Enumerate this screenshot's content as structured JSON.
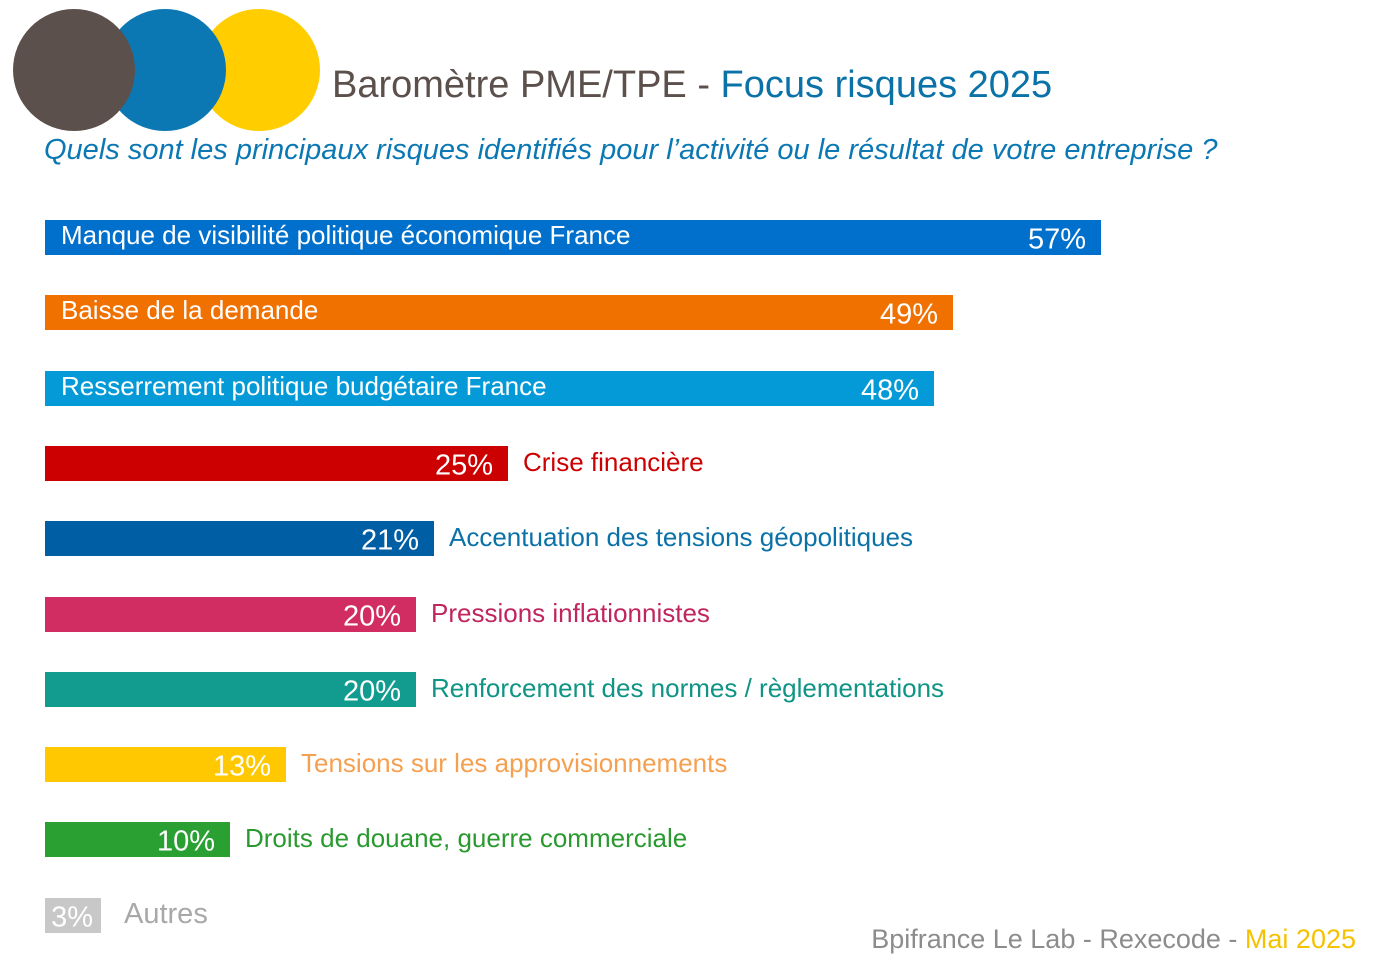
{
  "header": {
    "title_main": "Baromètre PME/TPE",
    "title_separator": "-",
    "title_accent": "Focus risques 2025",
    "question": "Quels sont les principaux risques identifiés pour l’activité ou le résultat de votre entreprise ?"
  },
  "logo": {
    "colors": [
      "#5c504c",
      "#0b78b4",
      "#ffcd00"
    ]
  },
  "chart_data": {
    "type": "bar",
    "orientation": "horizontal",
    "unit": "%",
    "categories": [
      "Manque de visibilité politique économique France",
      "Baisse de la demande",
      "Resserrement politique budgétaire France",
      "Crise financière",
      "Accentuation des tensions géopolitiques",
      "Pressions inflationnistes",
      "Renforcement des normes / règlementations",
      "Tensions sur les approvisionnements",
      "Droits de douane, guerre commerciale",
      "Autres"
    ],
    "values": [
      57,
      49,
      48,
      25,
      21,
      20,
      20,
      13,
      10,
      3
    ],
    "value_labels": [
      "57%",
      "49%",
      "48%",
      "25%",
      "21%",
      "20%",
      "20%",
      "13%",
      "10%",
      "3%"
    ],
    "colors": [
      "#0070cc",
      "#f07000",
      "#049ad8",
      "#cc0000",
      "#005ea5",
      "#d12d63",
      "#119c8f",
      "#ffc800",
      "#2aa032",
      "#c8c8c8"
    ],
    "label_colors": [
      "#ffffff",
      "#ffffff",
      "#ffffff",
      "#cc0000",
      "#0b72a8",
      "#c0265e",
      "#0f9485",
      "#f5a050",
      "#2a9a30",
      "#a8a8a8"
    ],
    "label_inside": [
      true,
      true,
      true,
      false,
      false,
      false,
      false,
      false,
      false,
      false
    ]
  },
  "footer": {
    "source": "Bpifrance Le Lab - Rexecode -",
    "date": "Mai 2025"
  }
}
